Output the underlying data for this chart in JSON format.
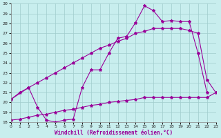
{
  "background_color": "#c8eeee",
  "grid_color": "#a0cccc",
  "line_color": "#990099",
  "xlabel": "Windchill (Refroidissement éolien,°C)",
  "xlim": [
    0,
    23
  ],
  "ylim": [
    18,
    30
  ],
  "xticks": [
    0,
    1,
    2,
    3,
    4,
    5,
    6,
    7,
    8,
    9,
    10,
    11,
    12,
    13,
    14,
    15,
    16,
    17,
    18,
    19,
    20,
    21,
    22,
    23
  ],
  "yticks": [
    18,
    19,
    20,
    21,
    22,
    23,
    24,
    25,
    26,
    27,
    28,
    29,
    30
  ],
  "curve1_x": [
    0,
    1,
    2,
    3,
    4,
    5,
    6,
    7,
    8,
    9,
    10,
    11,
    12,
    13,
    14,
    15,
    16,
    17,
    18,
    19,
    20,
    21,
    22
  ],
  "curve1_y": [
    20.3,
    21.0,
    21.5,
    19.5,
    18.2,
    18.0,
    18.2,
    18.3,
    21.5,
    23.3,
    23.3,
    25.0,
    26.5,
    26.7,
    28.1,
    29.8,
    29.3,
    28.2,
    28.3,
    28.2,
    28.2,
    25.0,
    21.0
  ],
  "curve2_x": [
    0,
    2,
    3,
    4,
    5,
    6,
    7,
    8,
    9,
    10,
    11,
    12,
    13,
    14,
    15,
    16,
    17,
    18,
    19,
    20,
    21,
    22,
    23
  ],
  "curve2_y": [
    20.3,
    21.5,
    22.0,
    22.5,
    23.0,
    23.5,
    24.0,
    24.5,
    25.0,
    25.5,
    25.8,
    26.2,
    26.5,
    27.0,
    27.2,
    27.5,
    27.5,
    27.5,
    27.5,
    27.3,
    27.0,
    22.3,
    21.0
  ],
  "curve3_x": [
    0,
    1,
    2,
    3,
    4,
    5,
    6,
    7,
    8,
    9,
    10,
    11,
    12,
    13,
    14,
    15,
    16,
    17,
    18,
    19,
    20,
    21,
    22,
    23
  ],
  "curve3_y": [
    18.2,
    18.3,
    18.5,
    18.7,
    18.8,
    19.0,
    19.2,
    19.3,
    19.5,
    19.7,
    19.8,
    20.0,
    20.1,
    20.2,
    20.3,
    20.5,
    20.5,
    20.5,
    20.5,
    20.5,
    20.5,
    20.5,
    20.5,
    21.0
  ]
}
